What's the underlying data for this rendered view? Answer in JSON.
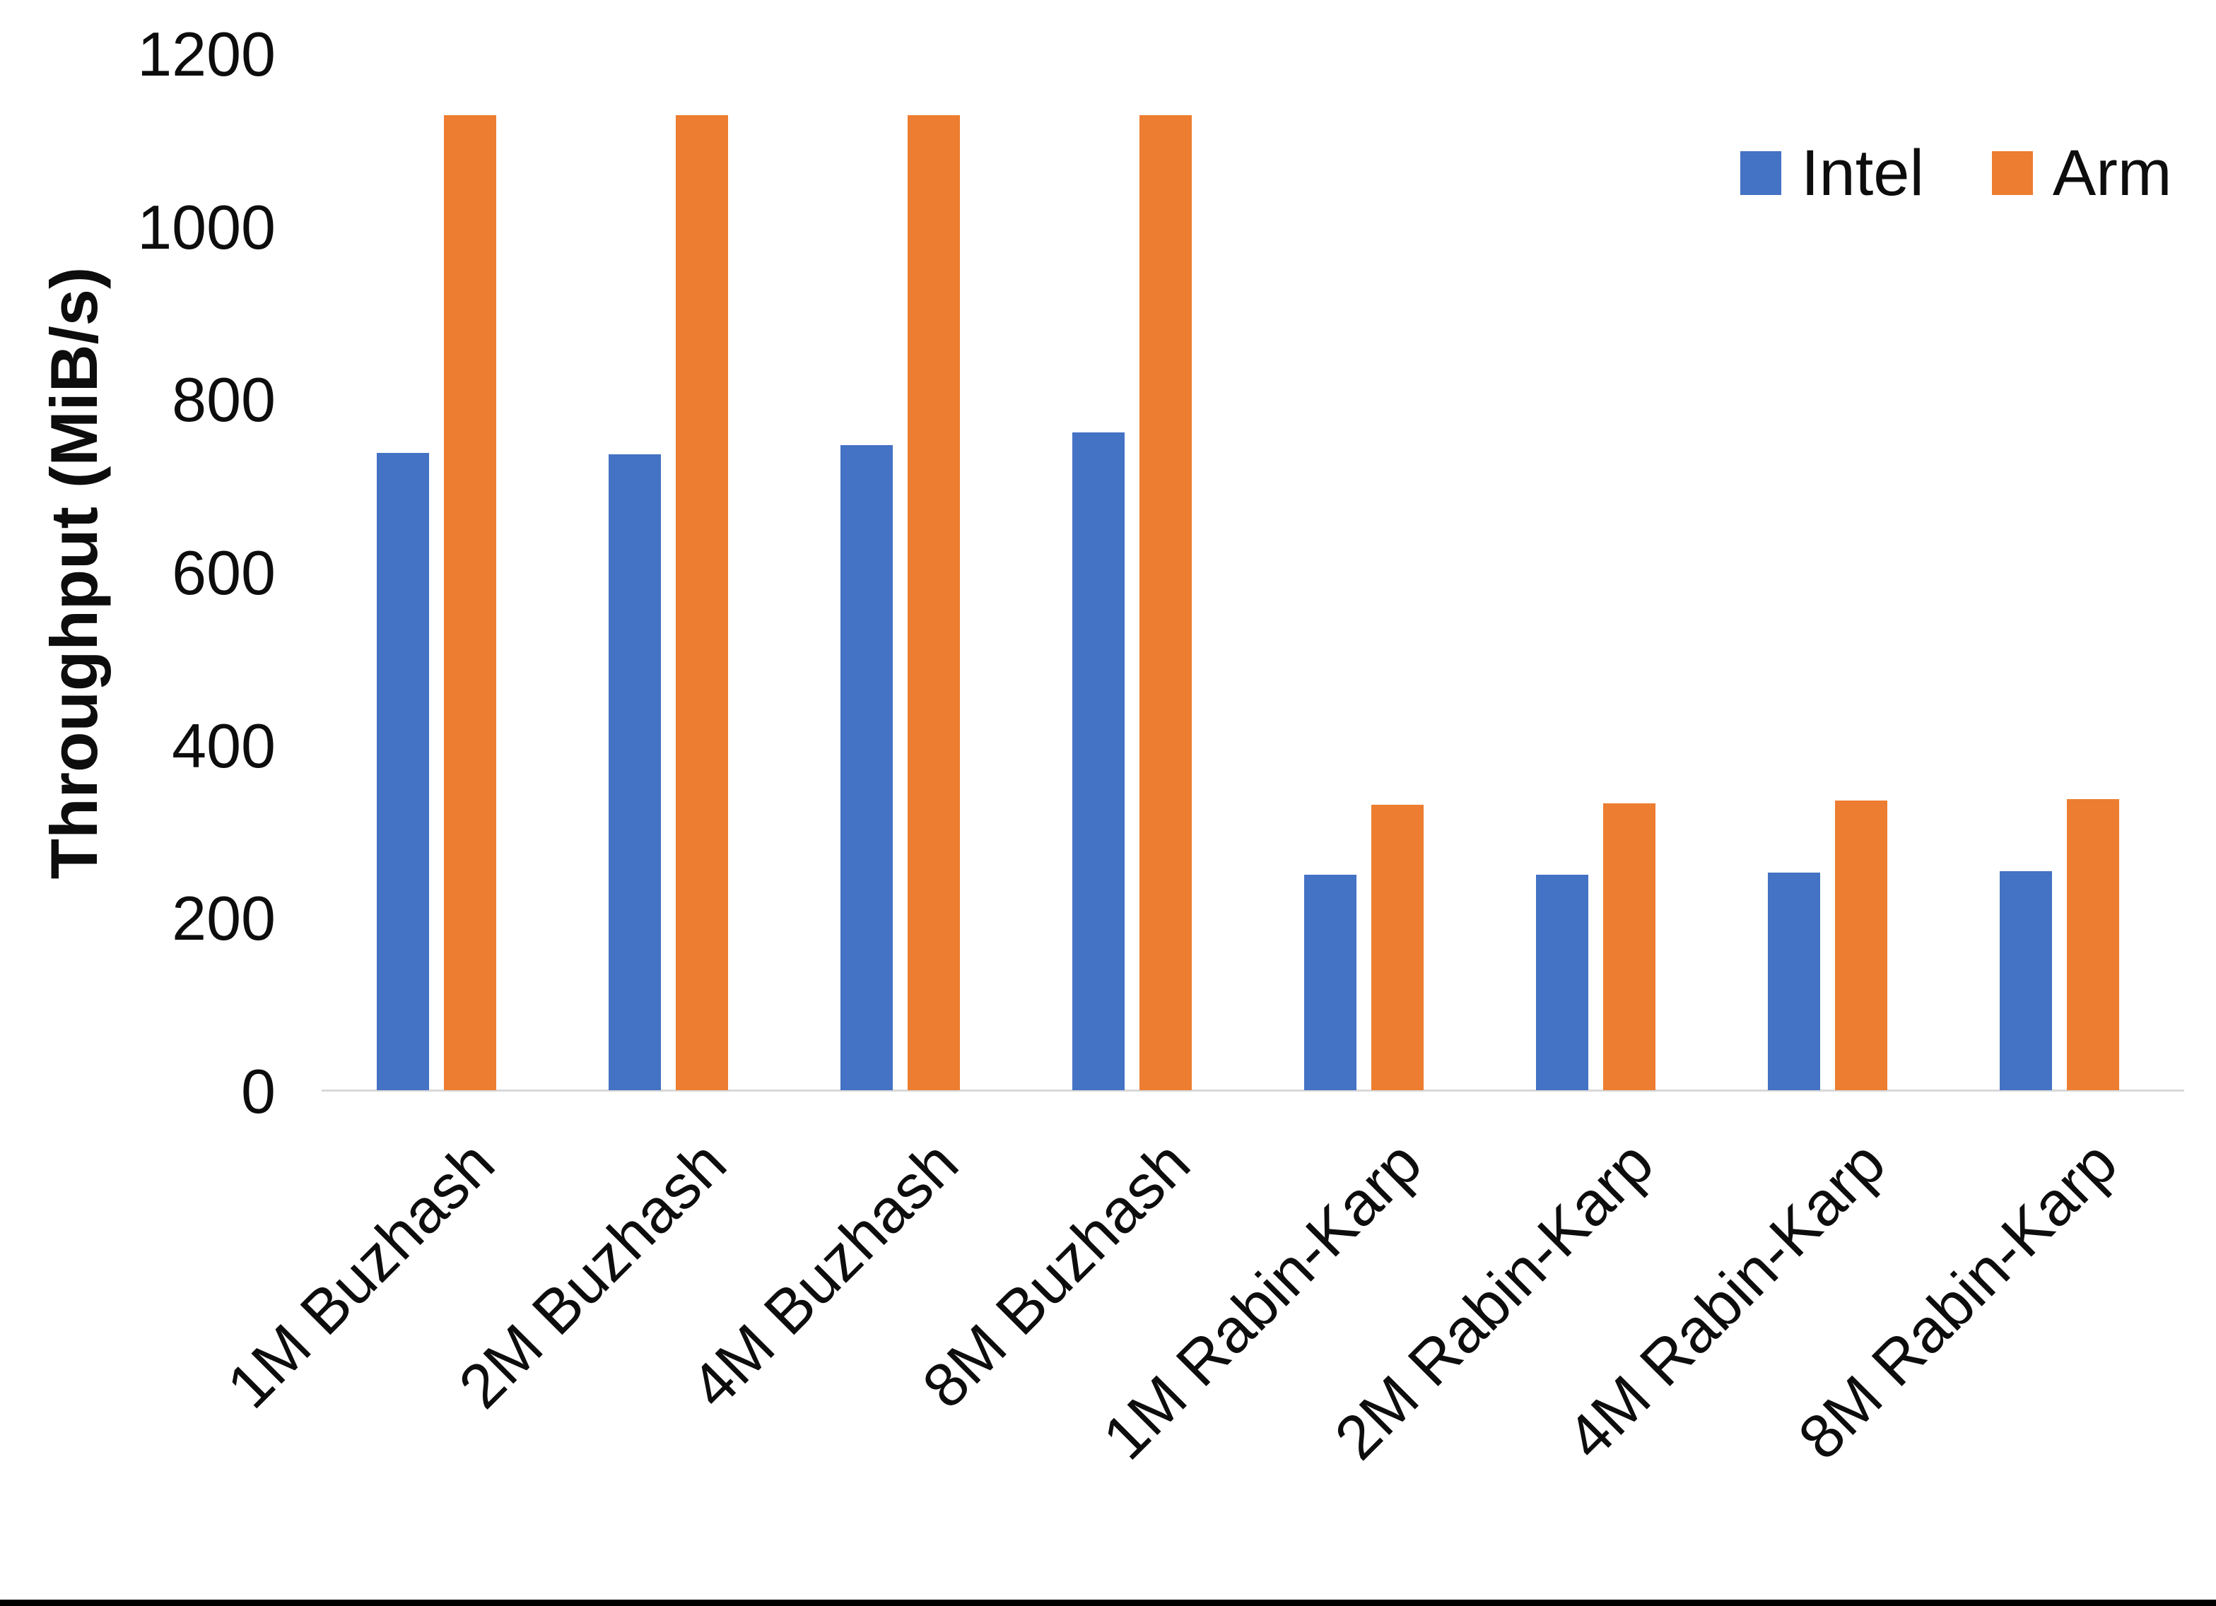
{
  "legend": {
    "items": [
      {
        "label": "Intel",
        "color": "#4472C4"
      },
      {
        "label": "Arm",
        "color": "#ED7D31"
      }
    ]
  },
  "y_axis": {
    "title": "Throughput (MiB/s)",
    "ticks": [
      0,
      200,
      400,
      600,
      800,
      1000,
      1200
    ]
  },
  "chart_data": {
    "type": "bar",
    "title": "",
    "xlabel": "",
    "ylabel": "Throughput (MiB/s)",
    "ylim": [
      0,
      1200
    ],
    "grid": false,
    "legend_position": "top-right",
    "axis_line_color": "#d9d9d9",
    "categories": [
      "1M Buzhash",
      "2M Buzhash",
      "4M Buzhash",
      "8M Buzhash",
      "1M Rabin-Karp",
      "2M Rabin-Karp",
      "4M Rabin-Karp",
      "8M Rabin-Karp"
    ],
    "series": [
      {
        "name": "Intel",
        "color": "#4472C4",
        "values": [
          737,
          736,
          746,
          761,
          249,
          249,
          252,
          253
        ]
      },
      {
        "name": "Arm",
        "color": "#ED7D31",
        "values": [
          1128,
          1128,
          1128,
          1128,
          330,
          332,
          335,
          337
        ]
      }
    ]
  }
}
